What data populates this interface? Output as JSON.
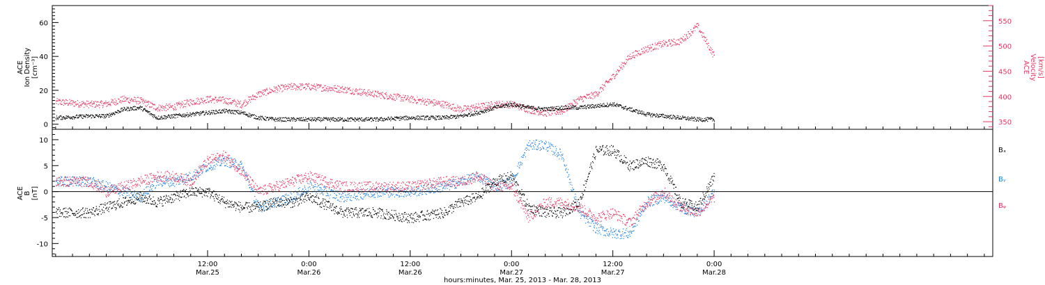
{
  "colors": {
    "black": "#000000",
    "pink": "#e8335f",
    "blue": "#1c7fe0"
  },
  "xaxis": {
    "title": "hours:minutes, Mar. 25, 2013 - Mar. 28, 2013",
    "range_hours": [
      -6.4,
      105.0
    ],
    "ticks": [
      {
        "hours": 12,
        "time": "12:00",
        "date": "Mar.25"
      },
      {
        "hours": 24,
        "time": "0:00",
        "date": "Mar.26"
      },
      {
        "hours": 36,
        "time": "12:00",
        "date": "Mar.26"
      },
      {
        "hours": 48,
        "time": "0:00",
        "date": "Mar.27"
      },
      {
        "hours": 60,
        "time": "12:00",
        "date": "Mar.27"
      },
      {
        "hours": 72,
        "time": "0:00",
        "date": "Mar.28"
      }
    ]
  },
  "chart_data": [
    {
      "type": "scatter",
      "panel": "top",
      "ylabel_left": [
        "ACE",
        "Ion Density",
        "[cm⁻³]"
      ],
      "ylabel_right": [
        "ACE",
        "Velocity",
        "[km/s]"
      ],
      "ylim_left": [
        -3,
        70
      ],
      "yticks_left": [
        "0",
        "20",
        "40",
        "60"
      ],
      "ylim_right": [
        335,
        580
      ],
      "yticks_right": [
        "350",
        "400",
        "450",
        "500",
        "550"
      ],
      "series": [
        {
          "axis": "left",
          "color": "#000000",
          "x": [
            -6,
            -2,
            0,
            2,
            4,
            6,
            8,
            10,
            12,
            14,
            16,
            18,
            20,
            22,
            24,
            28,
            32,
            36,
            40,
            42,
            44,
            46,
            48,
            50,
            52,
            54,
            56,
            58,
            60,
            62,
            64,
            66,
            68,
            70,
            72
          ],
          "y": [
            4,
            5,
            5,
            9,
            10,
            4,
            5,
            6,
            7,
            8,
            7,
            4,
            3,
            3,
            3,
            3,
            3,
            4,
            4,
            5,
            7,
            10,
            12,
            10,
            9,
            10,
            10,
            11,
            12,
            9,
            6,
            5,
            4,
            3,
            3
          ]
        },
        {
          "axis": "right",
          "color": "#e8335f",
          "x": [
            -6,
            -2,
            0,
            2,
            4,
            6,
            8,
            10,
            12,
            14,
            16,
            18,
            20,
            22,
            24,
            28,
            32,
            36,
            40,
            42,
            44,
            46,
            48,
            50,
            52,
            54,
            56,
            58,
            60,
            62,
            64,
            66,
            68,
            70,
            72
          ],
          "y": [
            390,
            385,
            386,
            395,
            392,
            378,
            380,
            390,
            395,
            393,
            385,
            405,
            415,
            420,
            420,
            415,
            405,
            395,
            385,
            375,
            380,
            385,
            385,
            375,
            368,
            372,
            395,
            405,
            440,
            480,
            495,
            505,
            510,
            540,
            480
          ]
        }
      ]
    },
    {
      "type": "scatter",
      "panel": "bottom",
      "ylabel_left": [
        "ACE",
        "B",
        "[nT]"
      ],
      "ylim": [
        -12.5,
        12
      ],
      "yticks": [
        "-10",
        "-5",
        "0",
        "5",
        "10"
      ],
      "series": [
        {
          "name": "Bₓ",
          "color": "#000000",
          "x": [
            -6,
            -2,
            0,
            2,
            4,
            6,
            8,
            10,
            12,
            14,
            16,
            18,
            20,
            22,
            24,
            28,
            32,
            36,
            40,
            42,
            44,
            46,
            48,
            50,
            52,
            54,
            56,
            58,
            60,
            62,
            64,
            66,
            68,
            70,
            72
          ],
          "y": [
            -4,
            -4,
            -3,
            -2,
            -1,
            -2,
            -1,
            0,
            0,
            -2,
            -3,
            -3,
            -2,
            -2,
            -1,
            -4,
            -4,
            -5,
            -4,
            -2,
            -1,
            2,
            3,
            -3,
            -4,
            -4,
            -2,
            8,
            8,
            5,
            6,
            5,
            -2,
            -3,
            3
          ]
        },
        {
          "name": "Bᵧ",
          "color": "#1c7fe0",
          "x": [
            -6,
            -2,
            0,
            2,
            4,
            6,
            8,
            10,
            12,
            14,
            16,
            18,
            20,
            22,
            24,
            28,
            32,
            36,
            40,
            42,
            44,
            46,
            48,
            50,
            52,
            54,
            56,
            58,
            60,
            62,
            64,
            66,
            68,
            70,
            72
          ],
          "y": [
            2,
            2,
            1,
            0,
            -1,
            2,
            2,
            3,
            5,
            6,
            5,
            -3,
            -2,
            -1,
            1,
            -1,
            0,
            0,
            1,
            2,
            3,
            1,
            2,
            9,
            9,
            7,
            -4,
            -7,
            -8,
            -8,
            -2,
            -1,
            -3,
            -4,
            0
          ]
        },
        {
          "name": "Bᵩ",
          "color": "#e8335f",
          "x": [
            -6,
            -2,
            0,
            2,
            4,
            6,
            8,
            10,
            12,
            14,
            16,
            18,
            20,
            22,
            24,
            28,
            32,
            36,
            40,
            42,
            44,
            46,
            48,
            50,
            52,
            54,
            56,
            58,
            60,
            62,
            64,
            66,
            68,
            70,
            72
          ],
          "y": [
            2,
            2,
            0,
            1,
            2,
            3,
            3,
            2,
            6,
            7,
            4,
            0,
            1,
            2,
            3,
            1,
            1,
            1,
            2,
            2,
            3,
            1,
            1,
            -5,
            -2,
            -2,
            -3,
            -5,
            -4,
            -6,
            -2,
            0,
            -3,
            -4,
            -1
          ]
        }
      ]
    }
  ]
}
